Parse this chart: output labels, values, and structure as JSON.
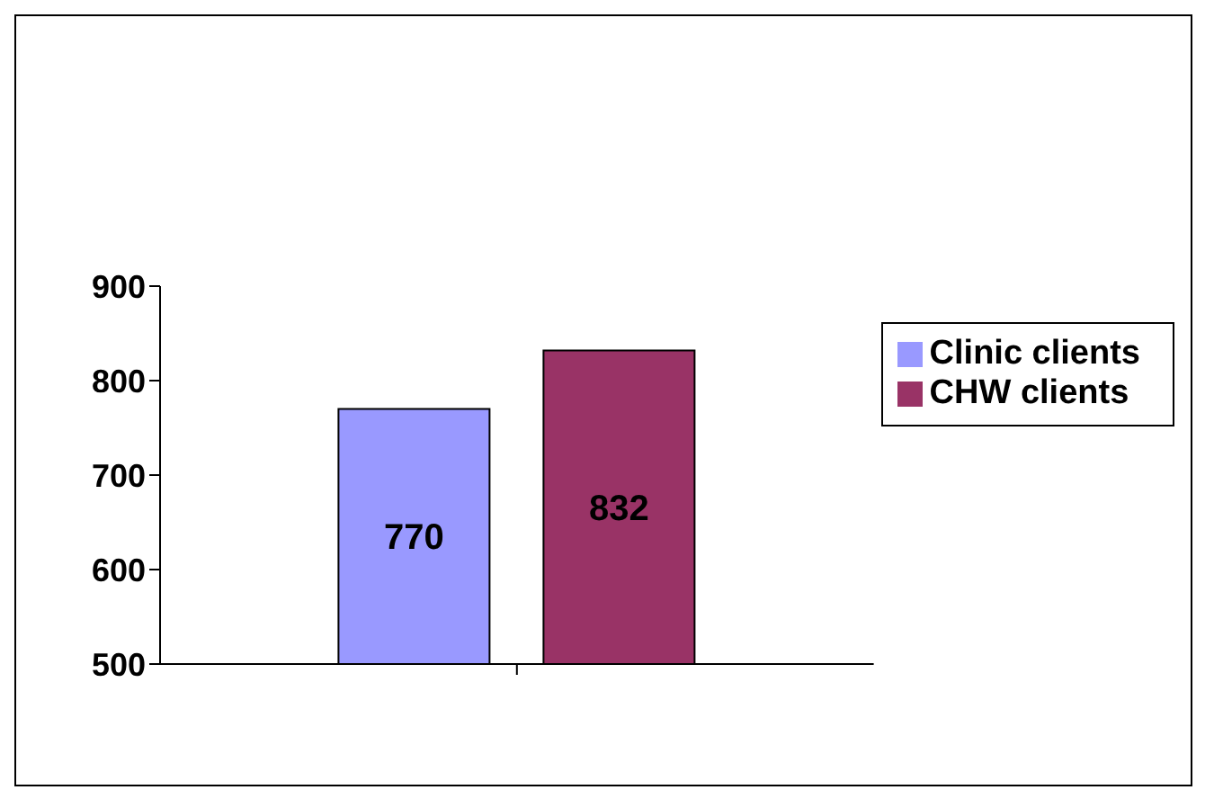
{
  "chart_data": {
    "type": "bar",
    "categories": [
      null
    ],
    "series": [
      {
        "name": "Clinic clients",
        "color": "#9999ff",
        "values": [
          770
        ]
      },
      {
        "name": "CHW clients",
        "color": "#993366",
        "values": [
          832
        ]
      }
    ],
    "ylim": [
      500,
      900
    ],
    "yticks": [
      500,
      600,
      700,
      800,
      900
    ],
    "data_labels": true,
    "grid": false,
    "legend": "right"
  }
}
